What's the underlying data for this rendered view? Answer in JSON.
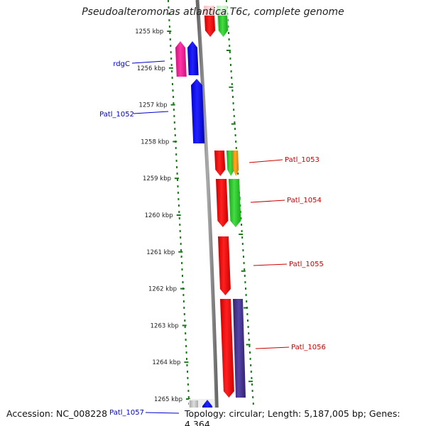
{
  "title": "Pseudoalteromonas atlantica T6c, complete genome",
  "footer": {
    "accession": "Accession: NC_008228",
    "summary": "Topology: circular; Length: 5,187,005 bp; Genes: 4,364"
  },
  "ruler": {
    "ticks": [
      "1255 kbp",
      "1256 kbp",
      "1257 kbp",
      "1258 kbp",
      "1259 kbp",
      "1260 kbp",
      "1261 kbp",
      "1262 kbp",
      "1263 kbp",
      "1264 kbp",
      "1265 kbp"
    ]
  },
  "genes": [
    {
      "label": "rdgC",
      "strand": "minus",
      "color": "#0000cc"
    },
    {
      "label": "Patl_1052",
      "strand": "minus",
      "color": "#0000cc"
    },
    {
      "label": "Patl_1053",
      "strand": "plus",
      "color": "#cc0000"
    },
    {
      "label": "Patl_1054",
      "strand": "plus",
      "color": "#cc0000"
    },
    {
      "label": "Patl_1055",
      "strand": "plus",
      "color": "#cc0000"
    },
    {
      "label": "Patl_1056",
      "strand": "plus",
      "color": "#cc0000"
    },
    {
      "label": "Patl_1057",
      "strand": "minus",
      "color": "#0000cc"
    }
  ],
  "colors": {
    "backbone": "#888888",
    "dots": "#1a7a1a",
    "ticks": "#1a7a1a",
    "gene_red": "#ff0000",
    "gene_blue": "#0000ff",
    "gene_green": "#22cc22",
    "gene_magenta": "#ee2299",
    "gene_orange": "#ff9900",
    "gene_purple": "#443388",
    "gene_pink": "#ffcccc",
    "gene_lightgreen": "#cceecc",
    "gene_gray": "#bbbbbb"
  }
}
